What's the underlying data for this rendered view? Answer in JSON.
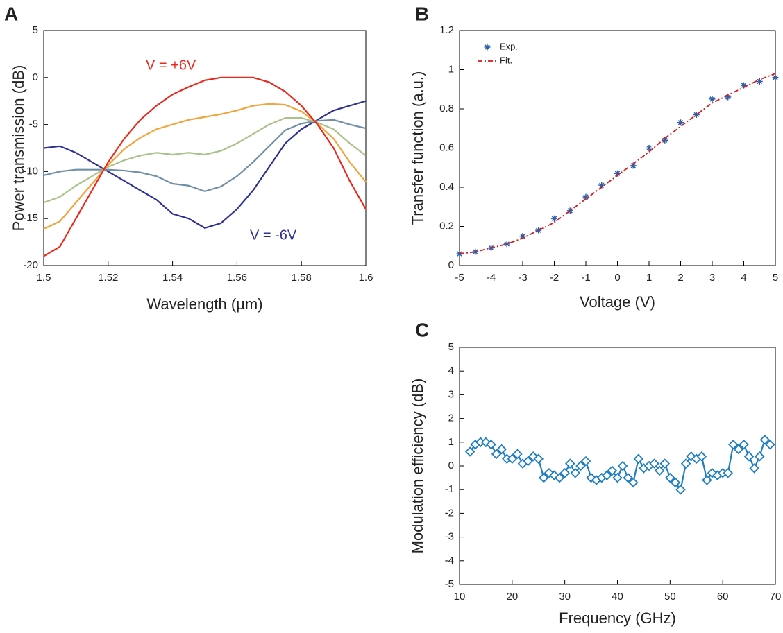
{
  "chart_data": [
    {
      "type": "line",
      "label": "A",
      "xlabel": "Wavelength (µm)",
      "ylabel": "Power transmission (dB)",
      "x": [
        1.5,
        1.505,
        1.51,
        1.515,
        1.52,
        1.525,
        1.53,
        1.535,
        1.54,
        1.545,
        1.55,
        1.555,
        1.56,
        1.565,
        1.57,
        1.575,
        1.58,
        1.585,
        1.59,
        1.595,
        1.6
      ],
      "series": [
        {
          "color": "#2e3192",
          "values": [
            -7.5,
            -7.3,
            -8,
            -9,
            -10,
            -11,
            -12,
            -13,
            -14.5,
            -15,
            -16,
            -15.5,
            -14,
            -12,
            -9.5,
            -7,
            -5.5,
            -4.5,
            -3.5,
            -3,
            -2.5
          ]
        },
        {
          "color": "#6f8fa8",
          "values": [
            -10.4,
            -10,
            -9.8,
            -9.8,
            -9.8,
            -9.9,
            -10.1,
            -10.5,
            -11.3,
            -11.5,
            -12.1,
            -11.6,
            -10.5,
            -9,
            -7.3,
            -5.6,
            -4.9,
            -4.6,
            -4.5,
            -5,
            -5.4
          ]
        },
        {
          "color": "#a8c28a",
          "values": [
            -13.3,
            -12.7,
            -11.5,
            -10.5,
            -9.5,
            -8.8,
            -8.3,
            -8,
            -8.2,
            -8,
            -8.2,
            -7.8,
            -7,
            -6,
            -5,
            -4.3,
            -4.3,
            -4.8,
            -5.5,
            -7,
            -8.3
          ]
        },
        {
          "color": "#f2a33a",
          "values": [
            -16.1,
            -15.3,
            -13.3,
            -11.3,
            -9.3,
            -7.6,
            -6.4,
            -5.5,
            -5,
            -4.5,
            -4.2,
            -3.9,
            -3.5,
            -3,
            -2.8,
            -2.9,
            -3.6,
            -4.9,
            -6.5,
            -9,
            -11.1
          ]
        },
        {
          "color": "#e8291c",
          "values": [
            -19,
            -18,
            -15,
            -12,
            -9,
            -6.5,
            -4.5,
            -3,
            -1.8,
            -1,
            -0.3,
            0,
            0,
            0,
            -0.5,
            -1.5,
            -3,
            -5,
            -7.5,
            -11,
            -14
          ]
        }
      ],
      "annotations": [
        {
          "text": "V = +6V",
          "color": "#e8291c"
        },
        {
          "text": "V = -6V",
          "color": "#2e3192"
        }
      ],
      "xlim": [
        1.5,
        1.6
      ],
      "xticks": [
        1.5,
        1.52,
        1.54,
        1.56,
        1.58,
        1.6
      ],
      "ylim": [
        -20,
        5
      ],
      "yticks": [
        -20,
        -15,
        -10,
        -5,
        0,
        5
      ]
    },
    {
      "type": "scatter",
      "label": "B",
      "xlabel": "Voltage (V)",
      "ylabel": "Transfer function (a.u.)",
      "legend": "upper left",
      "x": [
        -5,
        -4.5,
        -4,
        -3.5,
        -3,
        -2.5,
        -2,
        -1.5,
        -1,
        -0.5,
        0,
        0.5,
        1,
        1.5,
        2,
        2.5,
        3,
        3.5,
        4,
        4.5,
        5
      ],
      "series": [
        {
          "name": "Exp.",
          "color": "#2f5fa8",
          "marker": "asterisk",
          "values": [
            0.06,
            0.07,
            0.09,
            0.11,
            0.15,
            0.18,
            0.24,
            0.28,
            0.35,
            0.41,
            0.47,
            0.51,
            0.6,
            0.64,
            0.73,
            0.77,
            0.85,
            0.86,
            0.92,
            0.94,
            0.96
          ]
        },
        {
          "name": "Fit.",
          "color": "#d7191c",
          "linestyle": "dashed",
          "values": [
            0.06,
            0.07,
            0.09,
            0.11,
            0.14,
            0.18,
            0.22,
            0.28,
            0.34,
            0.4,
            0.46,
            0.52,
            0.58,
            0.65,
            0.71,
            0.77,
            0.83,
            0.87,
            0.91,
            0.95,
            0.98
          ]
        }
      ],
      "xlim": [
        -5,
        5
      ],
      "xticks": [
        -5,
        -4,
        -3,
        -2,
        -1,
        0,
        1,
        2,
        3,
        4,
        5
      ],
      "ylim": [
        0,
        1.2
      ],
      "yticks": [
        0,
        0.2,
        0.4,
        0.6,
        0.8,
        1,
        1.2
      ]
    },
    {
      "type": "line",
      "label": "C",
      "xlabel": "Frequency (GHz)",
      "ylabel": "Modulation efficiency (dB)",
      "x": [
        12,
        13,
        14,
        15,
        16,
        17,
        18,
        19,
        20,
        21,
        22,
        23,
        24,
        25,
        26,
        27,
        28,
        29,
        30,
        31,
        32,
        33,
        34,
        35,
        36,
        37,
        38,
        39,
        40,
        41,
        42,
        43,
        44,
        45,
        46,
        47,
        48,
        49,
        50,
        51,
        52,
        53,
        54,
        55,
        56,
        57,
        58,
        59,
        60,
        61,
        62,
        63,
        64,
        65,
        66,
        67,
        68,
        69
      ],
      "series": [
        {
          "color": "#1f7ec0",
          "marker": "diamond",
          "values": [
            0.6,
            0.9,
            1.0,
            1.0,
            0.9,
            0.5,
            0.7,
            0.3,
            0.3,
            0.5,
            0.1,
            0.2,
            0.4,
            0.3,
            -0.5,
            -0.3,
            -0.4,
            -0.5,
            -0.3,
            0.1,
            -0.3,
            0.0,
            0.2,
            -0.5,
            -0.6,
            -0.5,
            -0.4,
            -0.2,
            -0.5,
            0.0,
            -0.5,
            -0.7,
            0.3,
            -0.1,
            0.0,
            0.1,
            -0.2,
            0.1,
            -0.5,
            -0.7,
            -1.0,
            0.1,
            0.4,
            0.3,
            0.4,
            -0.6,
            -0.3,
            -0.4,
            -0.3,
            -0.3,
            0.9,
            0.7,
            0.9,
            0.4,
            -0.1,
            0.4,
            1.1,
            0.9
          ]
        }
      ],
      "xlim": [
        10,
        70
      ],
      "xticks": [
        10,
        20,
        30,
        40,
        50,
        60,
        70
      ],
      "ylim": [
        -5,
        5
      ],
      "yticks": [
        -5,
        -4,
        -3,
        -2,
        -1,
        0,
        1,
        2,
        3,
        4,
        5
      ]
    }
  ]
}
